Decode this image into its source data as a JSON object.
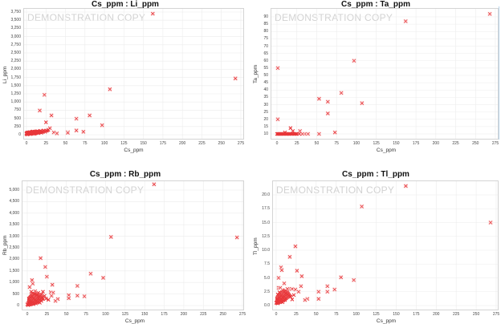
{
  "marker_color": "#e8363a",
  "watermark": "DEMONSTRATION COPY",
  "chart_data": [
    {
      "type": "scatter",
      "title": "Cs_ppm : Li_ppm",
      "xlabel": "Cs_ppm",
      "ylabel": "Li_ppm",
      "xlim": [
        0,
        275
      ],
      "ylim": [
        0,
        3750
      ],
      "xticks": [
        "0",
        "25",
        "50",
        "75",
        "100",
        "125",
        "150",
        "175",
        "200",
        "225",
        "250",
        "275"
      ],
      "yticks": [
        "0",
        "250",
        "500",
        "750",
        "1,000",
        "1,250",
        "1,500",
        "1,750",
        "2,000",
        "2,250",
        "2,500",
        "2,750",
        "3,000",
        "3,250",
        "3,500",
        "3,750"
      ],
      "grid": true,
      "marker": "x",
      "points": [
        [
          162,
          3700
        ],
        [
          268,
          1720
        ],
        [
          107,
          1390
        ],
        [
          23,
          1220
        ],
        [
          17,
          740
        ],
        [
          32,
          590
        ],
        [
          81,
          590
        ],
        [
          64,
          490
        ],
        [
          25,
          380
        ],
        [
          97,
          290
        ],
        [
          64,
          130
        ],
        [
          53,
          80
        ],
        [
          73,
          90
        ],
        [
          53,
          60
        ],
        [
          35,
          70
        ],
        [
          39,
          40
        ],
        [
          30,
          200
        ],
        [
          28,
          150
        ],
        [
          26,
          120
        ],
        [
          20,
          100
        ],
        [
          18,
          120
        ],
        [
          15,
          90
        ],
        [
          12,
          80
        ],
        [
          10,
          70
        ],
        [
          8,
          60
        ],
        [
          6,
          50
        ],
        [
          4,
          40
        ],
        [
          2,
          20
        ],
        [
          1,
          10
        ],
        [
          3,
          30
        ],
        [
          5,
          60
        ],
        [
          7,
          40
        ],
        [
          9,
          50
        ],
        [
          11,
          90
        ],
        [
          13,
          60
        ],
        [
          14,
          110
        ],
        [
          16,
          70
        ],
        [
          19,
          60
        ],
        [
          21,
          80
        ],
        [
          22,
          130
        ],
        [
          24,
          90
        ],
        [
          3,
          70
        ],
        [
          5,
          20
        ],
        [
          7,
          90
        ],
        [
          9,
          30
        ],
        [
          11,
          40
        ],
        [
          13,
          100
        ],
        [
          15,
          50
        ],
        [
          17,
          80
        ],
        [
          2,
          50
        ],
        [
          4,
          80
        ],
        [
          6,
          30
        ],
        [
          8,
          100
        ],
        [
          10,
          30
        ],
        [
          12,
          50
        ],
        [
          14,
          70
        ],
        [
          1,
          40
        ],
        [
          0,
          20
        ],
        [
          0,
          50
        ],
        [
          1,
          70
        ]
      ]
    },
    {
      "type": "scatter",
      "title": "Cs_ppm : Ta_ppm",
      "xlabel": "Cs_ppm",
      "ylabel": "Ta_ppm",
      "xlim": [
        0,
        275
      ],
      "ylim": [
        10,
        90
      ],
      "xticks": [
        "0",
        "25",
        "50",
        "75",
        "100",
        "125",
        "150",
        "175",
        "200",
        "225",
        "250",
        "275"
      ],
      "yticks": [
        "10",
        "15",
        "20",
        "25",
        "30",
        "35",
        "40",
        "45",
        "50",
        "55",
        "60",
        "65",
        "70",
        "75",
        "80",
        "85",
        "90"
      ],
      "grid": true,
      "marker": "x",
      "points": [
        [
          268,
          92
        ],
        [
          162,
          87
        ],
        [
          97,
          60
        ],
        [
          1,
          55
        ],
        [
          81,
          38
        ],
        [
          53,
          34
        ],
        [
          64,
          32
        ],
        [
          107,
          31
        ],
        [
          64,
          24
        ],
        [
          1,
          20
        ],
        [
          17,
          14
        ],
        [
          29,
          12
        ],
        [
          20,
          12
        ],
        [
          73,
          11
        ],
        [
          53,
          10
        ],
        [
          39,
          10
        ],
        [
          35,
          10
        ],
        [
          32,
          10
        ],
        [
          28,
          10
        ],
        [
          25,
          10
        ],
        [
          22,
          10
        ],
        [
          19,
          10
        ],
        [
          16,
          10
        ],
        [
          13,
          10
        ],
        [
          10,
          11
        ],
        [
          8,
          10
        ],
        [
          6,
          10
        ],
        [
          4,
          10
        ],
        [
          2,
          10
        ],
        [
          0,
          10
        ],
        [
          1,
          10
        ],
        [
          3,
          10
        ],
        [
          5,
          10
        ],
        [
          7,
          10
        ],
        [
          9,
          10
        ],
        [
          11,
          10
        ],
        [
          12,
          10
        ],
        [
          14,
          10
        ],
        [
          15,
          10
        ],
        [
          18,
          10
        ],
        [
          21,
          10
        ],
        [
          24,
          10
        ]
      ]
    },
    {
      "type": "scatter",
      "title": "Cs_ppm : Rb_ppm",
      "xlabel": "Cs_ppm",
      "ylabel": "Rb_ppm",
      "xlim": [
        0,
        275
      ],
      "ylim": [
        0,
        5000
      ],
      "xticks": [
        "0",
        "25",
        "50",
        "75",
        "100",
        "125",
        "150",
        "175",
        "200",
        "225",
        "250",
        "275"
      ],
      "yticks": [
        "0",
        "500",
        "1,000",
        "1,500",
        "2,000",
        "2,500",
        "3,000",
        "3,500",
        "4,000",
        "4,500",
        "5,000"
      ],
      "grid": true,
      "marker": "x",
      "points": [
        [
          162,
          5250
        ],
        [
          107,
          2970
        ],
        [
          268,
          2950
        ],
        [
          17,
          2050
        ],
        [
          23,
          1670
        ],
        [
          81,
          1380
        ],
        [
          25,
          1250
        ],
        [
          97,
          1200
        ],
        [
          6,
          1100
        ],
        [
          7,
          950
        ],
        [
          32,
          900
        ],
        [
          64,
          850
        ],
        [
          3,
          800
        ],
        [
          20,
          600
        ],
        [
          30,
          580
        ],
        [
          33,
          560
        ],
        [
          53,
          450
        ],
        [
          64,
          430
        ],
        [
          73,
          400
        ],
        [
          31,
          420
        ],
        [
          53,
          320
        ],
        [
          39,
          280
        ],
        [
          36,
          200
        ],
        [
          27,
          250
        ],
        [
          10,
          620
        ],
        [
          14,
          550
        ],
        [
          18,
          480
        ],
        [
          22,
          420
        ],
        [
          5,
          600
        ],
        [
          9,
          500
        ],
        [
          12,
          450
        ],
        [
          15,
          400
        ],
        [
          19,
          350
        ],
        [
          24,
          300
        ],
        [
          2,
          300
        ],
        [
          4,
          350
        ],
        [
          6,
          400
        ],
        [
          8,
          300
        ],
        [
          10,
          250
        ],
        [
          12,
          200
        ],
        [
          14,
          300
        ],
        [
          16,
          250
        ],
        [
          18,
          200
        ],
        [
          20,
          280
        ],
        [
          1,
          100
        ],
        [
          2,
          150
        ],
        [
          3,
          200
        ],
        [
          4,
          100
        ],
        [
          5,
          180
        ],
        [
          7,
          150
        ],
        [
          9,
          120
        ],
        [
          11,
          180
        ],
        [
          13,
          150
        ],
        [
          0,
          50
        ],
        [
          1,
          20
        ],
        [
          3,
          60
        ],
        [
          5,
          80
        ],
        [
          8,
          60
        ],
        [
          11,
          90
        ],
        [
          16,
          120
        ]
      ]
    },
    {
      "type": "scatter",
      "title": "Cs_ppm : Tl_ppm",
      "xlabel": "Cs_ppm",
      "ylabel": "Tl_ppm",
      "xlim": [
        0,
        275
      ],
      "ylim": [
        0,
        20
      ],
      "xticks": [
        "0",
        "25",
        "50",
        "75",
        "100",
        "125",
        "150",
        "175",
        "200",
        "225",
        "250",
        "275"
      ],
      "yticks": [
        "0.0",
        "2.5",
        "5.0",
        "7.5",
        "10.0",
        "12.5",
        "15.0",
        "17.5",
        "20.0"
      ],
      "grid": true,
      "marker": "x",
      "points": [
        [
          162,
          21.6
        ],
        [
          107,
          17.9
        ],
        [
          268,
          15.0
        ],
        [
          24,
          10.7
        ],
        [
          17,
          8.8
        ],
        [
          6,
          6.9
        ],
        [
          7,
          6.4
        ],
        [
          26,
          6.3
        ],
        [
          32,
          5.3
        ],
        [
          81,
          5.1
        ],
        [
          3,
          5.0
        ],
        [
          97,
          4.6
        ],
        [
          10,
          4.0
        ],
        [
          64,
          3.5
        ],
        [
          31,
          3.5
        ],
        [
          20,
          3.0
        ],
        [
          16,
          3.0
        ],
        [
          14,
          3.0
        ],
        [
          24,
          2.9
        ],
        [
          73,
          2.9
        ],
        [
          53,
          2.5
        ],
        [
          64,
          2.5
        ],
        [
          28,
          2.5
        ],
        [
          39,
          1.2
        ],
        [
          36,
          1.0
        ],
        [
          53,
          1.2
        ],
        [
          20,
          1.1
        ],
        [
          3,
          3.2
        ],
        [
          5,
          3.2
        ],
        [
          8,
          2.8
        ],
        [
          10,
          2.5
        ],
        [
          12,
          2.2
        ],
        [
          14,
          2.0
        ],
        [
          16,
          1.8
        ],
        [
          18,
          1.6
        ],
        [
          22,
          1.9
        ],
        [
          2,
          2.0
        ],
        [
          4,
          2.4
        ],
        [
          6,
          1.8
        ],
        [
          8,
          1.5
        ],
        [
          10,
          1.6
        ],
        [
          12,
          1.3
        ],
        [
          1,
          1.2
        ],
        [
          2,
          1.0
        ],
        [
          3,
          0.8
        ],
        [
          4,
          1.4
        ],
        [
          5,
          0.9
        ],
        [
          7,
          1.1
        ],
        [
          9,
          0.9
        ],
        [
          11,
          1.0
        ],
        [
          0,
          0.5
        ],
        [
          1,
          0.6
        ],
        [
          2,
          0.4
        ],
        [
          3,
          0.6
        ],
        [
          6,
          0.7
        ],
        [
          8,
          0.6
        ]
      ]
    }
  ]
}
